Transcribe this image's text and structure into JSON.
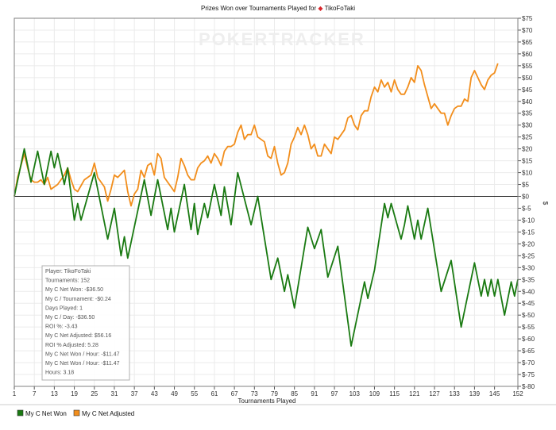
{
  "chart_data": {
    "type": "line",
    "title_prefix": "Prizes Won over Tournaments Played for",
    "player_name": "TikoFoTaki",
    "watermark": "POKERTRACKER",
    "xlabel": "Tournaments Played",
    "ylabel": "$",
    "xlim": [
      1,
      152
    ],
    "ylim": [
      -80,
      75
    ],
    "x_ticks": [
      1,
      7,
      13,
      19,
      25,
      31,
      37,
      43,
      49,
      55,
      61,
      67,
      73,
      79,
      85,
      91,
      97,
      103,
      109,
      115,
      121,
      127,
      133,
      139,
      145,
      152
    ],
    "y_ticks": [
      75,
      70,
      65,
      60,
      55,
      50,
      45,
      40,
      35,
      30,
      25,
      20,
      15,
      10,
      5,
      0,
      -5,
      -10,
      -15,
      -20,
      -25,
      -30,
      -35,
      -40,
      -45,
      -50,
      -55,
      -60,
      -65,
      -70,
      -75,
      -80
    ],
    "y_tick_labels": [
      "$75",
      "$70",
      "$65",
      "$60",
      "$55",
      "$50",
      "$45",
      "$40",
      "$35",
      "$30",
      "$25",
      "$20",
      "$15",
      "$10",
      "$5",
      "$0",
      "$-5",
      "$-10",
      "$-15",
      "$-20",
      "$-25",
      "$-30",
      "$-35",
      "$-40",
      "$-45",
      "$-50",
      "$-55",
      "$-60",
      "$-65",
      "$-70",
      "$-75",
      "$-80"
    ],
    "grid": true,
    "legend_position": "bottom-left",
    "series": [
      {
        "name": "My C Net Won",
        "color": "#1a7a12",
        "points": [
          [
            1,
            0
          ],
          [
            4,
            20
          ],
          [
            6,
            6
          ],
          [
            8,
            19
          ],
          [
            10,
            5
          ],
          [
            12,
            19
          ],
          [
            13,
            12
          ],
          [
            14,
            18
          ],
          [
            16,
            5
          ],
          [
            17,
            12
          ],
          [
            19,
            -10
          ],
          [
            20,
            -3
          ],
          [
            21,
            -10
          ],
          [
            25,
            10
          ],
          [
            29,
            -18
          ],
          [
            31,
            -5
          ],
          [
            33,
            -25
          ],
          [
            34,
            -17
          ],
          [
            35,
            -26
          ],
          [
            40,
            7
          ],
          [
            42,
            -8
          ],
          [
            44,
            7
          ],
          [
            47,
            -14
          ],
          [
            48,
            -5
          ],
          [
            49,
            -15
          ],
          [
            52,
            5
          ],
          [
            54,
            -14
          ],
          [
            55,
            -3
          ],
          [
            56,
            -16
          ],
          [
            58,
            -3
          ],
          [
            59,
            -9
          ],
          [
            61,
            5
          ],
          [
            63,
            -8
          ],
          [
            64,
            4
          ],
          [
            66,
            -12
          ],
          [
            68,
            10
          ],
          [
            72,
            -12
          ],
          [
            74,
            0
          ],
          [
            78,
            -35
          ],
          [
            80,
            -26
          ],
          [
            82,
            -40
          ],
          [
            83,
            -33
          ],
          [
            85,
            -47
          ],
          [
            89,
            -13
          ],
          [
            91,
            -22
          ],
          [
            93,
            -14
          ],
          [
            95,
            -34
          ],
          [
            98,
            -21
          ],
          [
            102,
            -63
          ],
          [
            106,
            -36
          ],
          [
            107,
            -43
          ],
          [
            109,
            -31
          ],
          [
            112,
            -3
          ],
          [
            113,
            -9
          ],
          [
            114,
            -3
          ],
          [
            117,
            -18
          ],
          [
            118,
            -12
          ],
          [
            119,
            -4
          ],
          [
            121,
            -18
          ],
          [
            122,
            -10
          ],
          [
            123,
            -18
          ],
          [
            125,
            -5
          ],
          [
            129,
            -40
          ],
          [
            132,
            -27
          ],
          [
            135,
            -55
          ],
          [
            139,
            -28
          ],
          [
            141,
            -42
          ],
          [
            142,
            -35
          ],
          [
            143,
            -42
          ],
          [
            144,
            -35
          ],
          [
            145,
            -42
          ],
          [
            146,
            -35
          ],
          [
            148,
            -50
          ],
          [
            150,
            -36
          ],
          [
            151,
            -42
          ],
          [
            152,
            -35
          ]
        ]
      },
      {
        "name": "My C Net Adjusted",
        "color": "#f28e1c",
        "points": [
          [
            1,
            0
          ],
          [
            2,
            8
          ],
          [
            4,
            18
          ],
          [
            5,
            12
          ],
          [
            6,
            7
          ],
          [
            7,
            6
          ],
          [
            8,
            6
          ],
          [
            9,
            7
          ],
          [
            10,
            5
          ],
          [
            11,
            8
          ],
          [
            12,
            3
          ],
          [
            13,
            4
          ],
          [
            14,
            5
          ],
          [
            16,
            9
          ],
          [
            17,
            12
          ],
          [
            18,
            7
          ],
          [
            19,
            3
          ],
          [
            20,
            2
          ],
          [
            22,
            7
          ],
          [
            24,
            9
          ],
          [
            25,
            14
          ],
          [
            26,
            8
          ],
          [
            28,
            4
          ],
          [
            29,
            -2
          ],
          [
            30,
            3
          ],
          [
            31,
            9
          ],
          [
            32,
            8
          ],
          [
            34,
            11
          ],
          [
            35,
            2
          ],
          [
            36,
            -4
          ],
          [
            37,
            1
          ],
          [
            38,
            3
          ],
          [
            39,
            11
          ],
          [
            40,
            8
          ],
          [
            41,
            13
          ],
          [
            42,
            14
          ],
          [
            43,
            9
          ],
          [
            44,
            18
          ],
          [
            45,
            16
          ],
          [
            46,
            8
          ],
          [
            47,
            6
          ],
          [
            48,
            4
          ],
          [
            49,
            2
          ],
          [
            50,
            8
          ],
          [
            51,
            16
          ],
          [
            52,
            13
          ],
          [
            53,
            9
          ],
          [
            54,
            7
          ],
          [
            55,
            7
          ],
          [
            56,
            12
          ],
          [
            57,
            14
          ],
          [
            58,
            15
          ],
          [
            59,
            17
          ],
          [
            60,
            14
          ],
          [
            61,
            18
          ],
          [
            62,
            16
          ],
          [
            63,
            13
          ],
          [
            64,
            19
          ],
          [
            65,
            21
          ],
          [
            66,
            21
          ],
          [
            67,
            22
          ],
          [
            68,
            27
          ],
          [
            69,
            30
          ],
          [
            70,
            24
          ],
          [
            71,
            26
          ],
          [
            72,
            26
          ],
          [
            73,
            30
          ],
          [
            74,
            25
          ],
          [
            75,
            24
          ],
          [
            76,
            23
          ],
          [
            77,
            17
          ],
          [
            78,
            16
          ],
          [
            79,
            21
          ],
          [
            80,
            14
          ],
          [
            81,
            9
          ],
          [
            82,
            10
          ],
          [
            83,
            14
          ],
          [
            84,
            22
          ],
          [
            85,
            25
          ],
          [
            86,
            29
          ],
          [
            87,
            26
          ],
          [
            88,
            30
          ],
          [
            89,
            26
          ],
          [
            90,
            20
          ],
          [
            91,
            22
          ],
          [
            92,
            17
          ],
          [
            93,
            17
          ],
          [
            94,
            22
          ],
          [
            95,
            20
          ],
          [
            96,
            18
          ],
          [
            97,
            25
          ],
          [
            98,
            24
          ],
          [
            99,
            26
          ],
          [
            100,
            28
          ],
          [
            101,
            33
          ],
          [
            102,
            34
          ],
          [
            103,
            30
          ],
          [
            104,
            28
          ],
          [
            105,
            34
          ],
          [
            106,
            36
          ],
          [
            107,
            36
          ],
          [
            108,
            42
          ],
          [
            109,
            46
          ],
          [
            110,
            44
          ],
          [
            111,
            49
          ],
          [
            112,
            46
          ],
          [
            113,
            48
          ],
          [
            114,
            44
          ],
          [
            115,
            49
          ],
          [
            116,
            45
          ],
          [
            117,
            43
          ],
          [
            118,
            43
          ],
          [
            119,
            46
          ],
          [
            120,
            50
          ],
          [
            121,
            48
          ],
          [
            122,
            55
          ],
          [
            123,
            53
          ],
          [
            124,
            47
          ],
          [
            125,
            42
          ],
          [
            126,
            37
          ],
          [
            127,
            39
          ],
          [
            128,
            37
          ],
          [
            129,
            35
          ],
          [
            130,
            35
          ],
          [
            131,
            30
          ],
          [
            132,
            34
          ],
          [
            133,
            37
          ],
          [
            134,
            38
          ],
          [
            135,
            38
          ],
          [
            136,
            41
          ],
          [
            137,
            40
          ],
          [
            138,
            50
          ],
          [
            139,
            53
          ],
          [
            140,
            50
          ],
          [
            141,
            47
          ],
          [
            142,
            45
          ],
          [
            143,
            49
          ],
          [
            144,
            51
          ],
          [
            145,
            52
          ],
          [
            146,
            56
          ]
        ]
      }
    ],
    "stats": [
      "Player: TikoFoTaki",
      "Tournaments: 152",
      "My C Net Won: -$36.50",
      "My C / Tournament: -$0.24",
      "Days Played: 1",
      "My C / Day: -$36.50",
      "ROI %: -3.43",
      "My C Net Adjusted: $56.16",
      "ROI % Adjusted: 5.28",
      "My C Net Won / Hour: -$11.47",
      "My C Net Won / Hour: -$11.47",
      "Hours: 3.18"
    ]
  }
}
